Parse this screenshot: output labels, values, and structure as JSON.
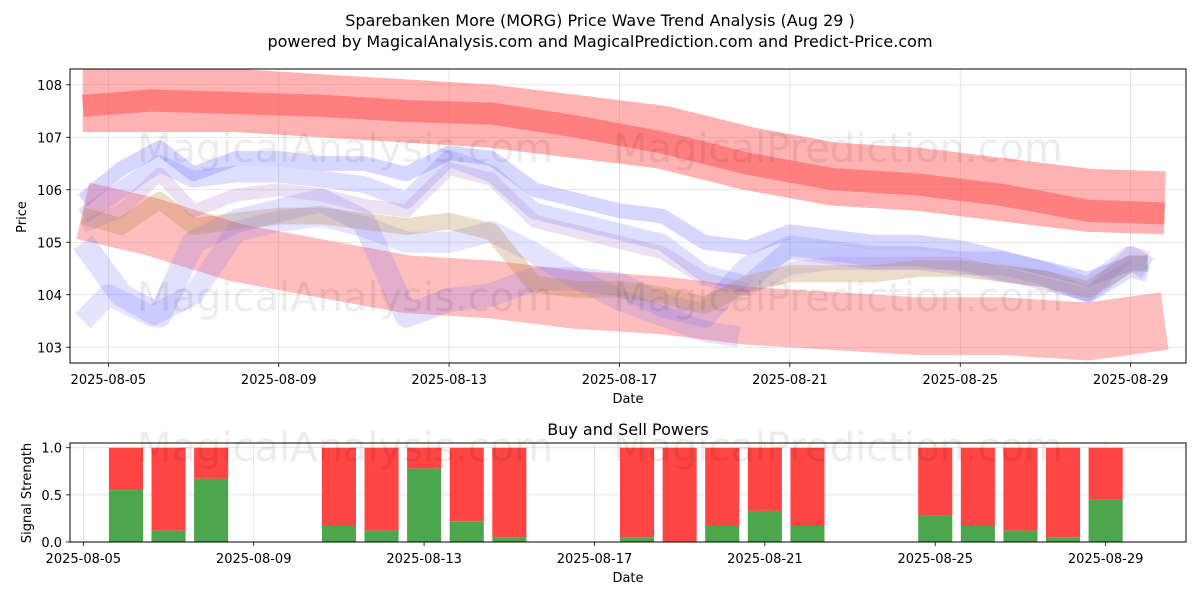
{
  "header": {
    "title_line1": "Sparebanken More (MORG) Price Wave Trend Analysis (Aug 29 )",
    "title_line2": "powered by MagicalAnalysis.com and MagicalPrediction.com and Predict-Price.com"
  },
  "watermarks": [
    "MagicalAnalysis.com",
    "MagicalPrediction.com"
  ],
  "colors": {
    "buy": "#4ca64c",
    "sell": "#ff4444",
    "red_band": "#ff5555",
    "blue_band": "#6a6aff"
  },
  "chart_data": [
    {
      "type": "line",
      "title": "",
      "xlabel": "Date",
      "ylabel": "Price",
      "x_tick_labels": [
        "2025-08-05",
        "2025-08-09",
        "2025-08-13",
        "2025-08-17",
        "2025-08-21",
        "2025-08-25",
        "2025-08-29"
      ],
      "x_ticks_day": [
        5,
        9,
        13,
        17,
        21,
        25,
        29
      ],
      "xlim_day": [
        4.1,
        30.3
      ],
      "y_tick_labels": [
        "103",
        "104",
        "105",
        "106",
        "107",
        "108"
      ],
      "y_ticks": [
        103,
        104,
        105,
        106,
        107,
        108
      ],
      "ylim": [
        102.7,
        108.3
      ],
      "grid": true,
      "bands": [
        {
          "name": "upper-red-outer",
          "color": "red",
          "opacity": 0.45,
          "x": [
            4.4,
            6,
            8,
            10,
            12,
            14,
            16,
            18,
            20,
            22,
            24,
            26,
            28,
            29.8
          ],
          "y": [
            107.7,
            107.7,
            107.7,
            107.6,
            107.5,
            107.4,
            107.2,
            107.0,
            106.6,
            106.3,
            106.2,
            106.0,
            105.8,
            105.75
          ],
          "width": 1.2
        },
        {
          "name": "upper-red-inner",
          "color": "red",
          "opacity": 0.55,
          "x": [
            4.4,
            6,
            8,
            10,
            12,
            14,
            16,
            18,
            20,
            22,
            24,
            26,
            28,
            29.8
          ],
          "y": [
            107.6,
            107.7,
            107.65,
            107.6,
            107.5,
            107.45,
            107.2,
            106.9,
            106.5,
            106.2,
            106.1,
            105.9,
            105.6,
            105.55
          ],
          "width": 0.42
        },
        {
          "name": "lower-red",
          "color": "red",
          "opacity": 0.38,
          "x": [
            4.4,
            6,
            8,
            10,
            12,
            14,
            16,
            18,
            20,
            22,
            24,
            26,
            28,
            29.8
          ],
          "y": [
            105.6,
            105.3,
            104.8,
            104.5,
            104.2,
            104.1,
            103.9,
            103.8,
            103.6,
            103.5,
            103.4,
            103.4,
            103.3,
            103.5
          ],
          "width": 1.1
        },
        {
          "name": "blue-1",
          "color": "blue",
          "opacity": 0.28,
          "x": [
            4.4,
            5.3,
            6.2,
            7,
            8,
            9,
            10,
            11,
            12,
            13,
            14,
            15,
            16,
            17,
            18,
            19,
            20,
            21,
            22,
            23,
            24,
            25,
            26,
            27,
            28,
            29,
            29.4
          ],
          "y": [
            105.8,
            106.4,
            106.8,
            106.3,
            106.6,
            106.6,
            106.5,
            106.5,
            106.3,
            106.7,
            106.6,
            106.0,
            105.8,
            105.6,
            105.5,
            105.0,
            104.9,
            105.2,
            105.1,
            105.0,
            105.0,
            104.9,
            104.7,
            104.5,
            104.3,
            104.6,
            104.6
          ],
          "width": 0.28
        },
        {
          "name": "blue-2",
          "color": "blue",
          "opacity": 0.22,
          "x": [
            4.4,
            5.3,
            6.2,
            7,
            8,
            9,
            10,
            11,
            12,
            13,
            14,
            15,
            16,
            17,
            18,
            19,
            20,
            21,
            22,
            23,
            24,
            25,
            26,
            27,
            28,
            29,
            29.4
          ],
          "y": [
            105.5,
            106.0,
            106.5,
            106.2,
            106.3,
            106.3,
            106.2,
            106.1,
            105.8,
            106.6,
            106.3,
            105.6,
            105.4,
            105.2,
            105.0,
            104.4,
            104.2,
            104.9,
            104.8,
            104.7,
            104.7,
            104.6,
            104.4,
            104.3,
            104.0,
            104.5,
            104.4
          ],
          "width": 0.32
        },
        {
          "name": "blue-3",
          "color": "blue",
          "opacity": 0.2,
          "x": [
            4.4,
            5.3,
            6.2,
            7,
            8,
            9,
            10,
            11,
            12,
            13,
            14,
            15,
            16,
            17,
            18,
            19,
            20,
            21,
            22,
            23,
            24,
            25,
            26,
            27,
            28,
            29,
            29.4
          ],
          "y": [
            105.0,
            104.0,
            103.6,
            105.0,
            105.4,
            105.6,
            105.8,
            105.4,
            103.6,
            103.9,
            104.0,
            104.3,
            104.3,
            104.2,
            103.8,
            103.6,
            104.5,
            104.9,
            104.8,
            104.7,
            104.7,
            104.6,
            104.6,
            104.4,
            104.1,
            104.7,
            104.5
          ],
          "width": 0.45
        },
        {
          "name": "blue-4",
          "color": "blue",
          "opacity": 0.18,
          "x": [
            4.4,
            5,
            6,
            7,
            8,
            9,
            10,
            11,
            12,
            13,
            14,
            15,
            16,
            17,
            18,
            19,
            19.8
          ],
          "y": [
            103.5,
            104.0,
            103.6,
            104.0,
            105.2,
            105.4,
            105.5,
            105.3,
            105.0,
            105.0,
            105.2,
            104.8,
            104.3,
            103.9,
            103.6,
            103.3,
            103.2
          ],
          "width": 0.4
        },
        {
          "name": "brown-mix",
          "color": "brown",
          "opacity": 0.28,
          "x": [
            4.4,
            5.3,
            6.2,
            7,
            8,
            9,
            10,
            11,
            12,
            13,
            14,
            15,
            16,
            17,
            18,
            19,
            20,
            21,
            22,
            23,
            24,
            25,
            26,
            27,
            28,
            29,
            29.4
          ],
          "y": [
            105.5,
            105.3,
            105.8,
            105.3,
            105.4,
            105.5,
            105.5,
            105.4,
            105.3,
            105.4,
            105.2,
            104.2,
            104.1,
            104.1,
            104.0,
            103.8,
            104.2,
            104.4,
            104.4,
            104.4,
            104.5,
            104.5,
            104.4,
            104.3,
            104.1,
            104.6,
            104.6
          ],
          "width": 0.32
        },
        {
          "name": "lavender-mix",
          "color": "purple",
          "opacity": 0.22,
          "x": [
            4.4,
            5.3,
            6.2,
            7,
            8,
            9,
            10,
            11,
            12,
            13,
            14,
            15,
            16,
            17,
            18,
            19,
            20,
            21,
            22,
            23,
            24,
            25,
            26,
            27,
            28,
            29,
            29.4
          ],
          "y": [
            105.3,
            105.6,
            106.3,
            105.6,
            105.9,
            106.0,
            105.9,
            105.7,
            105.6,
            106.4,
            106.2,
            105.4,
            105.2,
            105.0,
            104.8,
            104.3,
            104.1,
            104.5,
            104.6,
            104.6,
            104.6,
            104.6,
            104.4,
            104.2,
            104.0,
            104.8,
            104.7
          ],
          "width": 0.25
        }
      ]
    },
    {
      "type": "bar",
      "title": "Buy and Sell Powers",
      "xlabel": "Date",
      "ylabel": "Signal Strength",
      "x_tick_labels": [
        "2025-08-05",
        "2025-08-09",
        "2025-08-13",
        "2025-08-17",
        "2025-08-21",
        "2025-08-25",
        "2025-08-29"
      ],
      "x_ticks_day": [
        5,
        9,
        13,
        17,
        21,
        25,
        29
      ],
      "xlim_day": [
        4.1,
        30.3
      ],
      "y_tick_labels": [
        "0.0",
        "0.5",
        "1.0"
      ],
      "y_ticks": [
        0.0,
        0.5,
        1.0
      ],
      "ylim": [
        0,
        1.05
      ],
      "grid": true,
      "days": [
        6,
        7,
        8,
        11,
        12,
        13,
        14,
        15,
        18,
        19,
        20,
        21,
        22,
        25,
        26,
        27,
        28,
        29
      ],
      "series": [
        {
          "name": "Buy",
          "values": [
            0.55,
            0.12,
            0.67,
            0.17,
            0.12,
            0.78,
            0.22,
            0.05,
            0.05,
            0.0,
            0.17,
            0.33,
            0.17,
            0.28,
            0.17,
            0.12,
            0.05,
            0.45
          ]
        },
        {
          "name": "Sell",
          "values": [
            0.45,
            0.88,
            0.33,
            0.83,
            0.88,
            0.22,
            0.78,
            0.95,
            0.95,
            1.0,
            0.83,
            0.67,
            0.83,
            0.72,
            0.83,
            0.88,
            0.95,
            0.55
          ]
        }
      ]
    }
  ]
}
